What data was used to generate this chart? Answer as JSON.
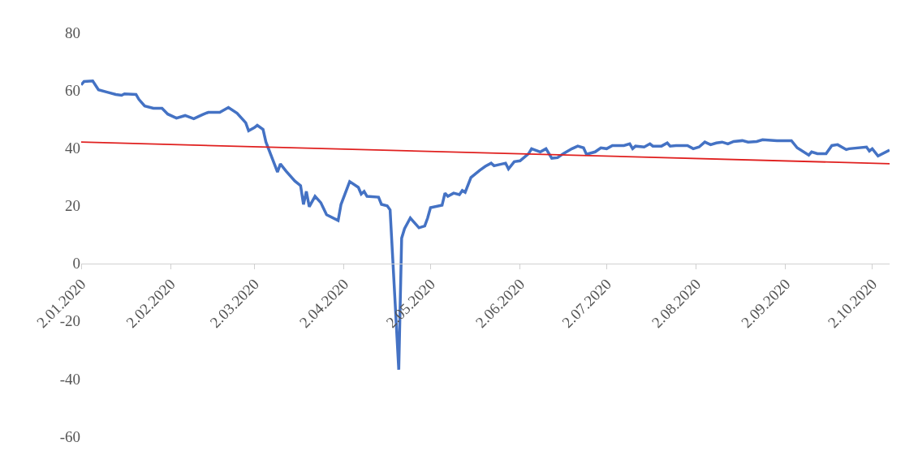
{
  "chart_data": {
    "type": "line",
    "xlim": [
      "2020-01-02",
      "2020-10-08"
    ],
    "xticks": [
      {
        "value": "2020-01-02",
        "label": "2.01.2020"
      },
      {
        "value": "2020-02-02",
        "label": "2.02.2020"
      },
      {
        "value": "2020-03-02",
        "label": "2.03.2020"
      },
      {
        "value": "2020-04-02",
        "label": "2.04.2020"
      },
      {
        "value": "2020-05-02",
        "label": "2.05.2020"
      },
      {
        "value": "2020-06-02",
        "label": "2.06.2020"
      },
      {
        "value": "2020-07-02",
        "label": "2.07.2020"
      },
      {
        "value": "2020-08-02",
        "label": "2.08.2020"
      },
      {
        "value": "2020-09-02",
        "label": "2.09.2020"
      },
      {
        "value": "2020-10-02",
        "label": "2.10.2020"
      }
    ],
    "ylim": [
      -60,
      80
    ],
    "yticks": [
      -60,
      -40,
      -20,
      0,
      20,
      40,
      60,
      80
    ],
    "marker": "none",
    "line_style": "solid",
    "series": [
      {
        "color": "#4472c4",
        "x": [
          "2020-01-02",
          "2020-01-03",
          "2020-01-06",
          "2020-01-08",
          "2020-01-11",
          "2020-01-14",
          "2020-01-16",
          "2020-01-17",
          "2020-01-21",
          "2020-01-22",
          "2020-01-24",
          "2020-01-27",
          "2020-01-30",
          "2020-02-01",
          "2020-02-04",
          "2020-02-07",
          "2020-02-10",
          "2020-02-13",
          "2020-02-15",
          "2020-02-19",
          "2020-02-22",
          "2020-02-25",
          "2020-02-28",
          "2020-02-29",
          "2020-03-02",
          "2020-03-03",
          "2020-03-05",
          "2020-03-06",
          "2020-03-10",
          "2020-03-11",
          "2020-03-13",
          "2020-03-16",
          "2020-03-18",
          "2020-03-19",
          "2020-03-20",
          "2020-03-21",
          "2020-03-23",
          "2020-03-25",
          "2020-03-27",
          "2020-03-31",
          "2020-04-01",
          "2020-04-04",
          "2020-04-07",
          "2020-04-08",
          "2020-04-09",
          "2020-04-10",
          "2020-04-14",
          "2020-04-15",
          "2020-04-17",
          "2020-04-18",
          "2020-04-21",
          "2020-04-22",
          "2020-04-23",
          "2020-04-25",
          "2020-04-28",
          "2020-04-30",
          "2020-05-01",
          "2020-05-02",
          "2020-05-06",
          "2020-05-07",
          "2020-05-08",
          "2020-05-10",
          "2020-05-12",
          "2020-05-13",
          "2020-05-14",
          "2020-05-16",
          "2020-05-19",
          "2020-05-21",
          "2020-05-23",
          "2020-05-24",
          "2020-05-28",
          "2020-05-29",
          "2020-05-31",
          "2020-06-02",
          "2020-06-05",
          "2020-06-06",
          "2020-06-09",
          "2020-06-11",
          "2020-06-13",
          "2020-06-15",
          "2020-06-17",
          "2020-06-20",
          "2020-06-22",
          "2020-06-24",
          "2020-06-25",
          "2020-06-28",
          "2020-06-30",
          "2020-07-02",
          "2020-07-04",
          "2020-07-08",
          "2020-07-10",
          "2020-07-11",
          "2020-07-12",
          "2020-07-15",
          "2020-07-17",
          "2020-07-18",
          "2020-07-21",
          "2020-07-23",
          "2020-07-24",
          "2020-07-26",
          "2020-07-30",
          "2020-08-01",
          "2020-08-03",
          "2020-08-05",
          "2020-08-07",
          "2020-08-09",
          "2020-08-11",
          "2020-08-13",
          "2020-08-15",
          "2020-08-18",
          "2020-08-20",
          "2020-08-23",
          "2020-08-25",
          "2020-08-30",
          "2020-09-04",
          "2020-09-06",
          "2020-09-10",
          "2020-09-11",
          "2020-09-13",
          "2020-09-16",
          "2020-09-18",
          "2020-09-20",
          "2020-09-23",
          "2020-09-24",
          "2020-09-30",
          "2020-10-01",
          "2020-10-02",
          "2020-10-04",
          "2020-10-08"
        ],
        "values": [
          61.8,
          63,
          63.2,
          60.1,
          59.3,
          58.5,
          58.2,
          58.7,
          58.5,
          56.8,
          54.5,
          53.7,
          53.7,
          51.7,
          50.3,
          51.2,
          50.1,
          51.5,
          52.3,
          52.3,
          54,
          52,
          48.7,
          45.9,
          47,
          47.8,
          46.4,
          42,
          31.6,
          34.4,
          31.9,
          28.5,
          26.9,
          20.4,
          24.9,
          19.6,
          23.2,
          21,
          16.8,
          14.8,
          20.4,
          28.3,
          26.3,
          24,
          24.9,
          23.2,
          22.9,
          20.4,
          19.9,
          18.5,
          -36.9,
          8.7,
          12,
          15.7,
          12.3,
          12.9,
          15.7,
          19.3,
          20.1,
          24.3,
          23.2,
          24.3,
          23.8,
          25.2,
          24.6,
          29.7,
          32.2,
          33.6,
          34.7,
          33.8,
          34.7,
          32.7,
          35.2,
          35.5,
          38,
          39.7,
          38.6,
          39.7,
          36.4,
          36.6,
          38,
          39.7,
          40.6,
          40,
          37.8,
          38.6,
          40,
          39.7,
          40.8,
          40.8,
          41.4,
          39.7,
          40.6,
          40.3,
          41.4,
          40.6,
          40.6,
          41.7,
          40.6,
          40.8,
          40.8,
          39.7,
          40.3,
          42,
          41.1,
          41.7,
          42,
          41.4,
          42.2,
          42.5,
          42,
          42.2,
          42.8,
          42.5,
          42.5,
          40,
          37.5,
          38.6,
          38,
          38,
          40.8,
          41.1,
          39.4,
          39.7,
          40.3,
          38.9,
          39.7,
          37.2,
          39.2
        ]
      },
      {
        "color": "#e0201f",
        "x": [
          "2020-01-02",
          "2020-10-08"
        ],
        "values": [
          42,
          34.5
        ]
      }
    ]
  }
}
